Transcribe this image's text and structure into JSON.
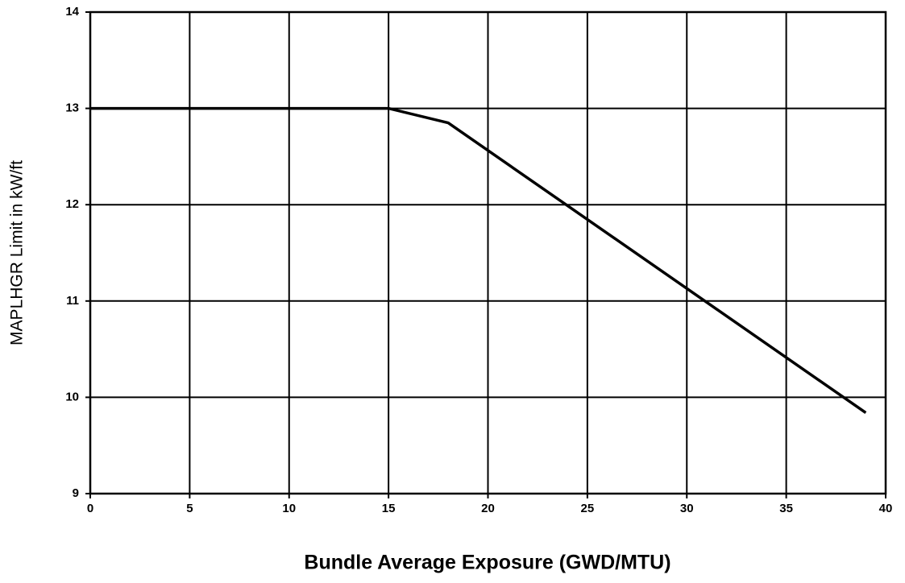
{
  "chart_data": {
    "type": "line",
    "x_label": "Bundle Average Exposure (GWD/MTU)",
    "y_label": "MAPLHGR Limit in kW/ft",
    "x": [
      0,
      15,
      18,
      39
    ],
    "values": [
      13,
      13,
      12.85,
      9.84
    ],
    "color": "#000000",
    "xlim": [
      0,
      40
    ],
    "xticks": [
      0,
      5,
      10,
      15,
      20,
      25,
      30,
      35,
      40
    ],
    "ylim": [
      9,
      14
    ],
    "yticks": [
      9,
      10,
      11,
      12,
      13,
      14
    ],
    "grid": true
  }
}
